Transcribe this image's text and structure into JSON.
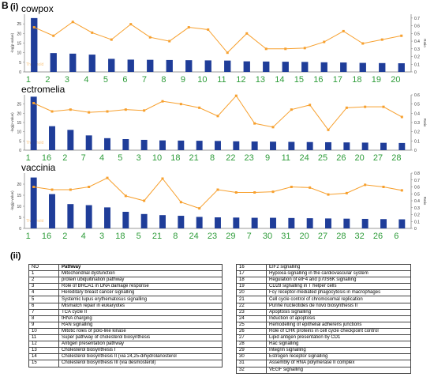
{
  "figure": {
    "panel_label": "B",
    "part_i_label": "(i)",
    "part_ii_label": "(ii)",
    "colors": {
      "bar": "#1f3d99",
      "line": "#f7a02e",
      "tick_green": "#2e9c3a",
      "axis": "#777777"
    }
  },
  "chart_data": [
    {
      "type": "bar",
      "title": "cowpox",
      "ylabel": "-log(p-value)",
      "y2label": "Ratio",
      "threshold_label": "Threshold",
      "categories": [
        "1",
        "2",
        "3",
        "4",
        "5",
        "6",
        "7",
        "8",
        "9",
        "10",
        "11",
        "12",
        "13",
        "14",
        "15",
        "16",
        "17",
        "18",
        "19",
        "20"
      ],
      "ylim": [
        0,
        30
      ],
      "y_ticks": [
        "0",
        "5",
        "10",
        "15",
        "20",
        "25"
      ],
      "y2lim": [
        0,
        0.75
      ],
      "y2_ticks": [
        "0",
        "0.1",
        "0.2",
        "0.3",
        "0.4",
        "0.5",
        "0.6",
        "0.7"
      ],
      "series": [
        {
          "kind": "bar",
          "values": [
            28,
            9.8,
            9.5,
            9,
            6.8,
            6.4,
            6.3,
            6.2,
            6.1,
            6.0,
            5.9,
            5.5,
            5.4,
            5.3,
            5.2,
            5.0,
            4.9,
            4.7,
            4.6,
            4.5
          ]
        },
        {
          "kind": "line",
          "values": [
            0.58,
            0.47,
            0.65,
            0.51,
            0.42,
            0.62,
            0.45,
            0.4,
            0.58,
            0.55,
            0.25,
            0.5,
            0.3,
            0.3,
            0.31,
            0.39,
            0.53,
            0.37,
            0.42,
            0.47
          ]
        }
      ]
    },
    {
      "type": "bar",
      "title": "ectromelia",
      "ylabel": "-log(p-value)",
      "y2label": "Ratio",
      "threshold_label": "Threshold",
      "categories": [
        "1",
        "16",
        "2",
        "7",
        "4",
        "5",
        "3",
        "10",
        "18",
        "21",
        "8",
        "22",
        "23",
        "9",
        "11",
        "24",
        "25",
        "26",
        "20",
        "27",
        "28"
      ],
      "ylim": [
        0,
        30
      ],
      "y_ticks": [
        "0",
        "5",
        "10",
        "15",
        "20",
        "25"
      ],
      "y2lim": [
        0,
        0.6
      ],
      "y2_ticks": [
        "0",
        "0.1",
        "0.2",
        "0.3",
        "0.4",
        "0.5",
        "0.6"
      ],
      "series": [
        {
          "kind": "bar",
          "values": [
            29,
            13,
            11,
            8,
            6.5,
            6,
            5.6,
            5.3,
            5.2,
            5.1,
            5.0,
            4.8,
            4.7,
            4.6,
            4.5,
            4.4,
            4.3,
            4.2,
            4.1,
            4.0,
            3.9
          ]
        },
        {
          "kind": "line",
          "values": [
            0.51,
            0.42,
            0.44,
            0.41,
            0.42,
            0.44,
            0.43,
            0.53,
            0.5,
            0.46,
            0.37,
            0.59,
            0.29,
            0.25,
            0.44,
            0.49,
            0.22,
            0.46,
            0.47,
            0.47,
            0.36
          ]
        }
      ]
    },
    {
      "type": "bar",
      "title": "vaccinia",
      "ylabel": "-log(p-value)",
      "y2label": "Ratio",
      "threshold_label": "Threshold",
      "categories": [
        "1",
        "16",
        "2",
        "4",
        "3",
        "18",
        "5",
        "21",
        "8",
        "24",
        "23",
        "29",
        "7",
        "30",
        "31",
        "20",
        "27",
        "28",
        "32",
        "26",
        "6"
      ],
      "ylim": [
        0,
        25
      ],
      "y_ticks": [
        "0",
        "5",
        "10",
        "15",
        "20"
      ],
      "y2lim": [
        0,
        0.8
      ],
      "y2_ticks": [
        "0",
        "0.1",
        "0.2",
        "0.3",
        "0.4",
        "0.5",
        "0.6",
        "0.7",
        "0.8"
      ],
      "series": [
        {
          "kind": "bar",
          "values": [
            23,
            15.5,
            11,
            10.5,
            9.5,
            7.5,
            6.5,
            6.0,
            5.7,
            5.2,
            5.0,
            4.9,
            4.8,
            4.8,
            4.7,
            4.6,
            4.5,
            4.4,
            4.3,
            4.2,
            4.1
          ]
        },
        {
          "kind": "line",
          "values": [
            0.6,
            0.56,
            0.56,
            0.6,
            0.73,
            0.47,
            0.4,
            0.72,
            0.38,
            0.29,
            0.56,
            0.52,
            0.52,
            0.53,
            0.6,
            0.59,
            0.49,
            0.51,
            0.63,
            0.6,
            0.55
          ]
        }
      ]
    }
  ],
  "pathways_table": {
    "header": {
      "no": "NO",
      "pathway": "Pathway"
    },
    "left": [
      {
        "no": "1",
        "pathway": "Mitochondrial dysfunction"
      },
      {
        "no": "2",
        "pathway": "protein ubiquitination pathway"
      },
      {
        "no": "3",
        "pathway": "Role of BRCA1 in DNA damage response"
      },
      {
        "no": "4",
        "pathway": "Hereditary breast cancer signalling"
      },
      {
        "no": "5",
        "pathway": "Systemic lupus erythematosus signalling"
      },
      {
        "no": "6",
        "pathway": "Mismatch repair in eukaryotes"
      },
      {
        "no": "7",
        "pathway": "TCA cycle II"
      },
      {
        "no": "8",
        "pathway": "tRNA charging"
      },
      {
        "no": "9",
        "pathway": "RAN signalling"
      },
      {
        "no": "10",
        "pathway": "Mitotic roles of polo-like kinase"
      },
      {
        "no": "11",
        "pathway": "Super pathway of cholesterol biosynthesis"
      },
      {
        "no": "12",
        "pathway": "Antigen presentation pathway"
      },
      {
        "no": "13",
        "pathway": "Cholesterol biosynthesis I"
      },
      {
        "no": "14",
        "pathway": "Cholesterol biosynthesis II (via 24,25-dihydrolanosterol"
      },
      {
        "no": "15",
        "pathway": "Cholesterol biosynthesis III (via desmosterol)"
      }
    ],
    "right": [
      {
        "no": "16",
        "pathway": "EIF2 signalling"
      },
      {
        "no": "17",
        "pathway": "Hypoxia signalling in the cardiovascular system"
      },
      {
        "no": "18",
        "pathway": "Regulation of eIF4 and p70S6K signalling"
      },
      {
        "no": "19",
        "pathway": "CD28 signalling in T helper cells"
      },
      {
        "no": "20",
        "pathway": "Fcγ receptor-mediated phagocytosis in macrophages"
      },
      {
        "no": "21",
        "pathway": "Cell cycle control of chromosomal replication"
      },
      {
        "no": "22",
        "pathway": "Purine nucleotides de novo biosynthesis II"
      },
      {
        "no": "23",
        "pathway": "Apoptosis signalling"
      },
      {
        "no": "24",
        "pathway": "Induction of apoptosis"
      },
      {
        "no": "25",
        "pathway": "Remodelling of epithelial adherens junctions"
      },
      {
        "no": "26",
        "pathway": "Role of CHK proteins in cell cycle checkpoint control"
      },
      {
        "no": "27",
        "pathway": "Lipid antigen presentation by CD1"
      },
      {
        "no": "28",
        "pathway": "Rac signalling"
      },
      {
        "no": "29",
        "pathway": "Integrin signalling"
      },
      {
        "no": "30",
        "pathway": "Estrogen receptor signalling"
      },
      {
        "no": "31",
        "pathway": "Assembly of RNA polymerase II complex"
      },
      {
        "no": "32",
        "pathway": "VEGF signalling"
      }
    ]
  }
}
